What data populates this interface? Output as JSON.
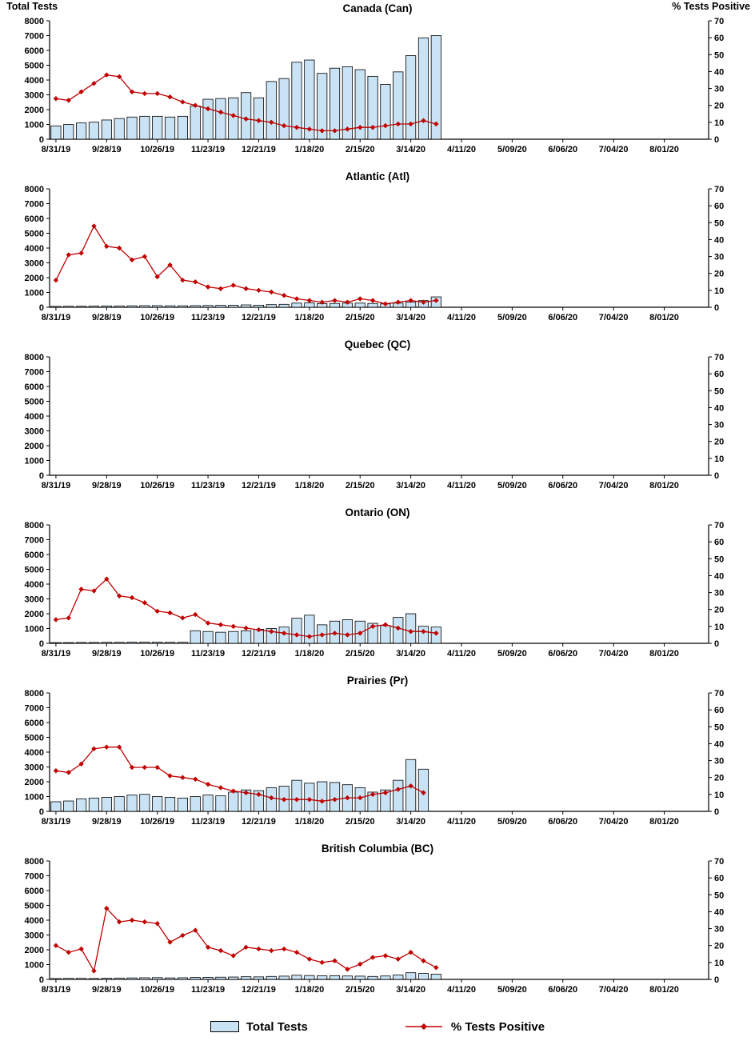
{
  "page": {
    "left_axis_title": "Total Tests",
    "right_axis_title": "% Tests Positive",
    "legend": {
      "bars_label": "Total Tests",
      "line_label": "% Tests Positive"
    }
  },
  "chart_common": {
    "weeks_total": 52,
    "x_unit": "week",
    "x_tick_labels": [
      "8/31/19",
      "9/28/19",
      "10/26/19",
      "11/23/19",
      "12/21/19",
      "1/18/20",
      "2/15/20",
      "3/14/20",
      "4/11/20",
      "5/09/20",
      "6/06/20",
      "7/04/20",
      "8/01/20"
    ],
    "x_tick_week_indices": [
      0,
      4,
      8,
      12,
      16,
      20,
      24,
      28,
      32,
      36,
      40,
      44,
      48
    ],
    "left_ylim": [
      0,
      8000
    ],
    "left_ytick_step": 1000,
    "right_ylim": [
      0,
      70
    ],
    "right_ytick_step": 10,
    "bar_color": "#C9E3F5",
    "bar_border_color": "#000000",
    "line_color": "#C00000"
  },
  "chart_data": [
    {
      "type": "bar+line",
      "title": "Canada (Can)",
      "series": [
        {
          "name": "Total Tests",
          "type": "bar",
          "axis": "left",
          "values": [
            900,
            1000,
            1100,
            1150,
            1300,
            1400,
            1500,
            1550,
            1550,
            1500,
            1550,
            2250,
            2700,
            2750,
            2800,
            3150,
            2800,
            3900,
            4100,
            5200,
            5350,
            4450,
            4800,
            4900,
            4700,
            4250,
            3700,
            4550,
            5650,
            6850,
            7000
          ]
        },
        {
          "name": "% Tests Positive",
          "type": "line",
          "axis": "right",
          "values": [
            24,
            23,
            28,
            33,
            38,
            37,
            28,
            27,
            27,
            25,
            22,
            20,
            18,
            16,
            14,
            12,
            11,
            10,
            8,
            7,
            6,
            5,
            5,
            6,
            7,
            7,
            8,
            9,
            9,
            11,
            9
          ]
        }
      ]
    },
    {
      "type": "bar+line",
      "title": "Atlantic (Atl)",
      "series": [
        {
          "name": "Total Tests",
          "type": "bar",
          "axis": "left",
          "values": [
            60,
            70,
            70,
            80,
            90,
            90,
            100,
            110,
            110,
            100,
            100,
            110,
            120,
            130,
            140,
            160,
            140,
            180,
            200,
            280,
            300,
            250,
            260,
            280,
            280,
            260,
            230,
            280,
            350,
            450,
            700
          ]
        },
        {
          "name": "% Tests Positive",
          "type": "line",
          "axis": "right",
          "values": [
            16,
            31,
            32,
            48,
            36,
            35,
            28,
            30,
            18,
            25,
            16,
            15,
            12,
            11,
            13,
            11,
            10,
            9,
            7,
            5,
            4,
            3,
            4,
            3,
            5,
            4,
            2,
            3,
            4,
            3,
            4
          ]
        }
      ]
    },
    {
      "type": "bar+line",
      "title": "Quebec (QC)",
      "series": [
        {
          "name": "Total Tests",
          "type": "bar",
          "axis": "left",
          "values": []
        },
        {
          "name": "% Tests Positive",
          "type": "line",
          "axis": "right",
          "values": []
        }
      ]
    },
    {
      "type": "bar+line",
      "title": "Ontario (ON)",
      "series": [
        {
          "name": "Total Tests",
          "type": "bar",
          "axis": "left",
          "values": [
            50,
            50,
            60,
            60,
            70,
            70,
            80,
            80,
            80,
            70,
            70,
            850,
            800,
            750,
            800,
            850,
            950,
            1000,
            1100,
            1700,
            1900,
            1250,
            1500,
            1600,
            1500,
            1350,
            1200,
            1750,
            2000,
            1150,
            1100
          ]
        },
        {
          "name": "% Tests Positive",
          "type": "line",
          "axis": "right",
          "values": [
            14,
            15,
            32,
            31,
            38,
            28,
            27,
            24,
            19,
            18,
            15,
            17,
            12,
            11,
            10,
            9,
            8,
            7,
            6,
            5,
            4,
            5,
            6,
            5,
            6,
            10,
            11,
            9,
            7,
            7,
            6
          ]
        }
      ]
    },
    {
      "type": "bar+line",
      "title": "Prairies (Pr)",
      "series": [
        {
          "name": "Total Tests",
          "type": "bar",
          "axis": "left",
          "values": [
            650,
            700,
            850,
            900,
            950,
            1000,
            1100,
            1150,
            1000,
            950,
            900,
            1000,
            1100,
            1050,
            1300,
            1450,
            1400,
            1600,
            1700,
            2100,
            1900,
            2000,
            1950,
            1800,
            1600,
            1300,
            1450,
            2100,
            3500,
            2850
          ]
        },
        {
          "name": "% Tests Positive",
          "type": "line",
          "axis": "right",
          "values": [
            24,
            23,
            28,
            37,
            38,
            38,
            26,
            26,
            26,
            21,
            20,
            19,
            16,
            14,
            12,
            11,
            10,
            8,
            7,
            7,
            7,
            6,
            7,
            8,
            8,
            10,
            11,
            13,
            15,
            11
          ]
        }
      ]
    },
    {
      "type": "bar+line",
      "title": "British Columbia (BC)",
      "series": [
        {
          "name": "Total Tests",
          "type": "bar",
          "axis": "left",
          "values": [
            60,
            70,
            70,
            60,
            80,
            90,
            100,
            110,
            120,
            100,
            110,
            130,
            140,
            150,
            160,
            180,
            170,
            200,
            220,
            280,
            260,
            240,
            250,
            230,
            220,
            200,
            230,
            300,
            450,
            400,
            350
          ]
        },
        {
          "name": "% Tests Positive",
          "type": "line",
          "axis": "right",
          "values": [
            20,
            16,
            18,
            5,
            42,
            34,
            35,
            34,
            33,
            22,
            26,
            29,
            19,
            17,
            14,
            19,
            18,
            17,
            18,
            16,
            12,
            10,
            11,
            6,
            9,
            13,
            14,
            12,
            16,
            11,
            7
          ]
        }
      ]
    }
  ]
}
